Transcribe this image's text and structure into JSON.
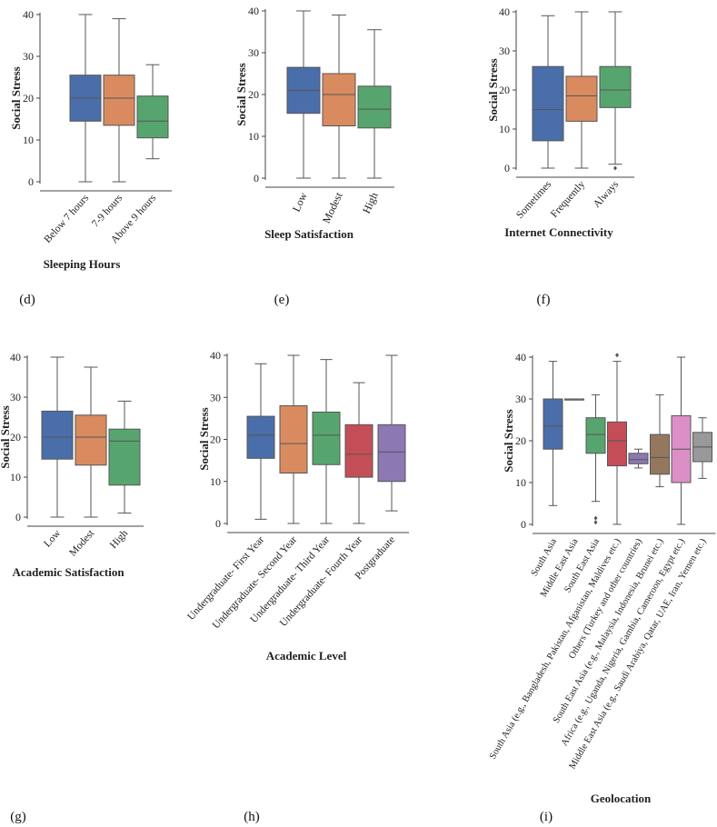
{
  "colors": {
    "blue": "#4a6ea9",
    "orange": "#d98b5f",
    "green": "#57a56e",
    "red": "#c44e57",
    "purple": "#8c78b3",
    "brown": "#93785e",
    "pink": "#dc8fc6",
    "gray": "#999999"
  },
  "chart_data": [
    {
      "id": "d",
      "panel_label": "(d)",
      "type": "box",
      "xlabel": "Sleeping Hours",
      "ylabel": "Social Stress",
      "ylim": [
        0,
        40
      ],
      "yticks": [
        "0",
        "10",
        "20",
        "30",
        "40"
      ],
      "categories": [
        "Below 7 hours",
        "7-9 hours",
        "Above 9 hours"
      ],
      "boxes": [
        {
          "min": 0,
          "q1": 14.5,
          "median": 20,
          "q3": 25.5,
          "max": 40,
          "color": "#4a6ea9",
          "outliers": []
        },
        {
          "min": 0,
          "q1": 13.5,
          "median": 20,
          "q3": 25.5,
          "max": 39,
          "color": "#d98b5f",
          "outliers": []
        },
        {
          "min": 5.5,
          "q1": 10.5,
          "median": 14.5,
          "q3": 20.5,
          "max": 28,
          "color": "#57a56e",
          "outliers": []
        }
      ]
    },
    {
      "id": "e",
      "panel_label": "(e)",
      "type": "box",
      "xlabel": "Sleep Satisfaction",
      "ylabel": "Social Stress",
      "ylim": [
        0,
        40
      ],
      "yticks": [
        "0",
        "10",
        "20",
        "30",
        "40"
      ],
      "categories": [
        "Low",
        "Modest",
        "High"
      ],
      "boxes": [
        {
          "min": 0,
          "q1": 15.5,
          "median": 21,
          "q3": 26.5,
          "max": 40,
          "color": "#4a6ea9",
          "outliers": []
        },
        {
          "min": 0,
          "q1": 12.5,
          "median": 20,
          "q3": 25,
          "max": 39,
          "color": "#d98b5f",
          "outliers": []
        },
        {
          "min": 0,
          "q1": 12,
          "median": 16.5,
          "q3": 22,
          "max": 35.5,
          "color": "#57a56e",
          "outliers": []
        }
      ]
    },
    {
      "id": "f",
      "panel_label": "(f)",
      "type": "box",
      "xlabel": "Internet Connectivity",
      "ylabel": "Social Stress",
      "ylim": [
        0,
        40
      ],
      "yticks": [
        "0",
        "10",
        "20",
        "30",
        "40"
      ],
      "categories": [
        "Sometimes",
        "Frequently",
        "Always"
      ],
      "boxes": [
        {
          "min": 0,
          "q1": 7,
          "median": 15,
          "q3": 26,
          "max": 39,
          "color": "#4a6ea9",
          "outliers": []
        },
        {
          "min": 0,
          "q1": 12,
          "median": 18.5,
          "q3": 23.5,
          "max": 40,
          "color": "#d98b5f",
          "outliers": []
        },
        {
          "min": 1,
          "q1": 15.5,
          "median": 20,
          "q3": 26,
          "max": 40,
          "color": "#57a56e",
          "outliers": [
            0
          ]
        }
      ]
    },
    {
      "id": "g",
      "panel_label": "(g)",
      "type": "box",
      "xlabel": "Academic Satisfaction",
      "ylabel": "Social Stress",
      "ylim": [
        0,
        40
      ],
      "yticks": [
        "0",
        "10",
        "20",
        "30",
        "40"
      ],
      "categories": [
        "Low",
        "Modest",
        "High"
      ],
      "boxes": [
        {
          "min": 0,
          "q1": 14.5,
          "median": 20,
          "q3": 26.5,
          "max": 40,
          "color": "#4a6ea9",
          "outliers": []
        },
        {
          "min": 0,
          "q1": 13,
          "median": 20,
          "q3": 25.5,
          "max": 37.5,
          "color": "#d98b5f",
          "outliers": []
        },
        {
          "min": 1,
          "q1": 8,
          "median": 19,
          "q3": 22,
          "max": 29,
          "color": "#57a56e",
          "outliers": []
        }
      ]
    },
    {
      "id": "h",
      "panel_label": "(h)",
      "type": "box",
      "xlabel": "Academic Level",
      "ylabel": "Social Stress",
      "ylim": [
        0,
        40
      ],
      "yticks": [
        "0",
        "10",
        "20",
        "30",
        "40"
      ],
      "categories": [
        "Undergraduate- First Year",
        "Undergraduate- Second Year",
        "Undergraduate- Third Year",
        "Undergraduate- Fourth Year",
        "Postgraduate"
      ],
      "boxes": [
        {
          "min": 1,
          "q1": 15.5,
          "median": 21,
          "q3": 25.5,
          "max": 38,
          "color": "#4a6ea9",
          "outliers": []
        },
        {
          "min": 0,
          "q1": 12,
          "median": 19,
          "q3": 28,
          "max": 40,
          "color": "#d98b5f",
          "outliers": []
        },
        {
          "min": 0,
          "q1": 14,
          "median": 21,
          "q3": 26.5,
          "max": 39,
          "color": "#57a56e",
          "outliers": []
        },
        {
          "min": 0,
          "q1": 11,
          "median": 16.5,
          "q3": 23.5,
          "max": 33.5,
          "color": "#c44e57",
          "outliers": []
        },
        {
          "min": 3,
          "q1": 10,
          "median": 17,
          "q3": 23.5,
          "max": 40,
          "color": "#8c78b3",
          "outliers": []
        }
      ]
    },
    {
      "id": "i",
      "panel_label": "(i)",
      "type": "box",
      "xlabel": "Geolocation",
      "ylabel": "Social Stress",
      "ylim": [
        0,
        40
      ],
      "yticks": [
        "0",
        "10",
        "20",
        "30",
        "40"
      ],
      "categories": [
        "South Asia",
        "Middle East Asia",
        "South East Asia",
        "South Asia (e.g., Bangladesh, Pakistan, Afganistan, Maldives etc.)",
        "Others (Turkey and other countries)",
        "South East Asia  (e.g., Malaysia, Indonesia, Brunei etc.)",
        "Africa (e.g., Uganda, Nigeria, Gambia, Cameroon, Egypt etc.)",
        "Middle East Asia (e.g., Saudi Arabiya, Qatar, UAE, Iran, Yemen etc.)"
      ],
      "boxes": [
        {
          "min": 4.5,
          "q1": 18,
          "median": 23.5,
          "q3": 30,
          "max": 39,
          "color": "#4a6ea9",
          "outliers": []
        },
        {
          "min": 30,
          "q1": 30,
          "median": 30,
          "q3": 30,
          "max": 30,
          "color": "#d98b5f",
          "outliers": []
        },
        {
          "min": 5.5,
          "q1": 17,
          "median": 21.5,
          "q3": 25.5,
          "max": 31,
          "color": "#57a56e",
          "outliers": [
            1.5,
            0.5
          ]
        },
        {
          "min": 0,
          "q1": 14,
          "median": 20,
          "q3": 24.5,
          "max": 39,
          "color": "#c44e57",
          "outliers": [
            40.5
          ]
        },
        {
          "min": 13.5,
          "q1": 14.5,
          "median": 15.5,
          "q3": 17,
          "max": 18,
          "color": "#8c78b3",
          "outliers": []
        },
        {
          "min": 9,
          "q1": 12,
          "median": 16,
          "q3": 21.5,
          "max": 31,
          "color": "#93785e",
          "outliers": []
        },
        {
          "min": 0,
          "q1": 10,
          "median": 18,
          "q3": 26,
          "max": 40,
          "color": "#dc8fc6",
          "outliers": []
        },
        {
          "min": 11,
          "q1": 15,
          "median": 18.5,
          "q3": 22,
          "max": 25.5,
          "color": "#999999",
          "outliers": []
        }
      ]
    }
  ]
}
